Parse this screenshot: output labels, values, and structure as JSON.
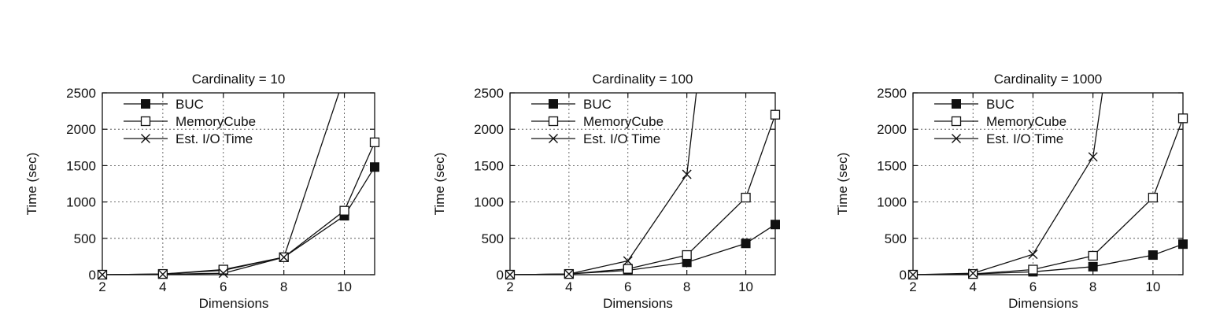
{
  "chart_data": [
    {
      "type": "line",
      "title": "Cardinality = 10",
      "xlabel": "Dimensions",
      "ylabel": "Time (sec)",
      "xlim": [
        2,
        11
      ],
      "ylim": [
        0,
        2500
      ],
      "x_ticks": [
        "2",
        "4",
        "6",
        "8",
        "10"
      ],
      "y_ticks": [
        "0",
        "500",
        "1000",
        "1500",
        "2000",
        "2500"
      ],
      "grid": true,
      "legend_position": "top-left",
      "series": [
        {
          "name": "BUC",
          "marker": "filled-square",
          "x": [
            2,
            4,
            6,
            8,
            10,
            11
          ],
          "y": [
            0,
            10,
            60,
            240,
            810,
            1480
          ]
        },
        {
          "name": "MemoryCube",
          "marker": "open-square",
          "x": [
            2,
            4,
            6,
            8,
            10,
            11
          ],
          "y": [
            0,
            10,
            70,
            240,
            880,
            1820
          ]
        },
        {
          "name": "Est. I/O Time",
          "marker": "cross",
          "x": [
            2,
            4,
            6,
            8,
            9.9
          ],
          "y": [
            0,
            5,
            20,
            240,
            2600
          ]
        }
      ]
    },
    {
      "type": "line",
      "title": "Cardinality = 100",
      "xlabel": "Dimensions",
      "ylabel": "Time (sec)",
      "xlim": [
        2,
        11
      ],
      "ylim": [
        0,
        2500
      ],
      "x_ticks": [
        "2",
        "4",
        "6",
        "8",
        "10"
      ],
      "y_ticks": [
        "0",
        "500",
        "1000",
        "1500",
        "2000",
        "2500"
      ],
      "grid": true,
      "legend_position": "top-left",
      "series": [
        {
          "name": "BUC",
          "marker": "filled-square",
          "x": [
            2,
            4,
            6,
            8,
            10,
            11
          ],
          "y": [
            0,
            10,
            60,
            170,
            430,
            690
          ]
        },
        {
          "name": "MemoryCube",
          "marker": "open-square",
          "x": [
            2,
            4,
            6,
            8,
            10,
            11
          ],
          "y": [
            0,
            10,
            80,
            270,
            1060,
            2200
          ]
        },
        {
          "name": "Est. I/O Time",
          "marker": "cross",
          "x": [
            2,
            4,
            6,
            8,
            8.35
          ],
          "y": [
            0,
            10,
            190,
            1380,
            2600
          ]
        }
      ]
    },
    {
      "type": "line",
      "title": "Cardinality = 1000",
      "xlabel": "Dimensions",
      "ylabel": "Time (sec)",
      "xlim": [
        2,
        11
      ],
      "ylim": [
        0,
        2500
      ],
      "x_ticks": [
        "2",
        "4",
        "6",
        "8",
        "10"
      ],
      "y_ticks": [
        "0",
        "500",
        "1000",
        "1500",
        "2000",
        "2500"
      ],
      "grid": true,
      "legend_position": "top-left",
      "series": [
        {
          "name": "BUC",
          "marker": "filled-square",
          "x": [
            2,
            4,
            6,
            8,
            10,
            11
          ],
          "y": [
            0,
            10,
            40,
            110,
            270,
            420
          ]
        },
        {
          "name": "MemoryCube",
          "marker": "open-square",
          "x": [
            2,
            4,
            6,
            8,
            10,
            11
          ],
          "y": [
            0,
            10,
            70,
            260,
            1060,
            2150
          ]
        },
        {
          "name": "Est. I/O Time",
          "marker": "cross",
          "x": [
            2,
            4,
            6,
            8,
            8.35
          ],
          "y": [
            0,
            20,
            280,
            1620,
            2600
          ]
        }
      ]
    }
  ]
}
